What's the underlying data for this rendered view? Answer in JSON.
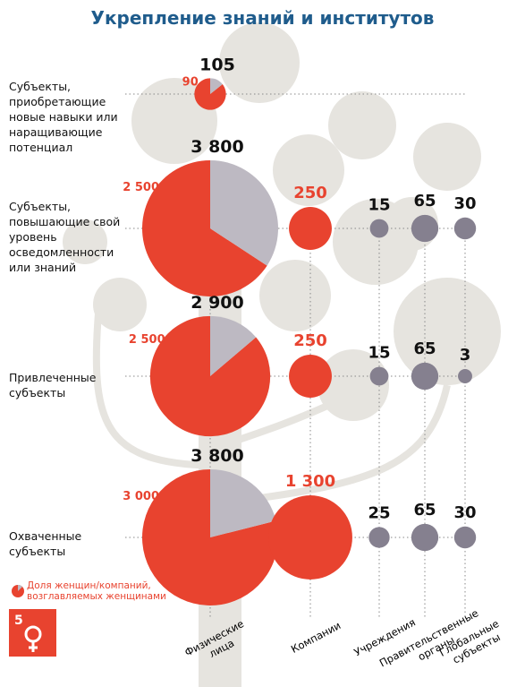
{
  "chart_data": {
    "type": "pie-matrix",
    "title": "Укрепление знаний и институтов",
    "rows": [
      "Субъекты, приобретающие новые навыки или наращивающие потенциал",
      "Субъекты, повышающие свой уровень осведомленности или знаний",
      "Привлеченные субъекты",
      "Охваченные субъекты"
    ],
    "legend": "Доля женщин/компаний, возглавляемых женщинами",
    "series": [
      {
        "name": "Физические лица",
        "color": "#e8432f",
        "total_color": "#bdb9c2",
        "values": [
          105,
          3800,
          2900,
          3800
        ],
        "value_labels": [
          "105",
          "3 800",
          "2 900",
          "3 800"
        ],
        "women": [
          90,
          2500,
          2500,
          3000
        ],
        "women_labels": [
          "90",
          "2 500",
          "2 500",
          "3 000"
        ]
      },
      {
        "name": "Компании",
        "color": "#e8432f",
        "values": [
          null,
          250,
          250,
          1300
        ],
        "value_labels": [
          null,
          "250",
          "250",
          "1 300"
        ]
      },
      {
        "name": "Учреждения",
        "color": "#85808f",
        "values": [
          null,
          15,
          15,
          25
        ]
      },
      {
        "name": "Правительственные органы",
        "color": "#85808f",
        "values": [
          null,
          65,
          65,
          65
        ]
      },
      {
        "name": "Глобальные субъекты",
        "color": "#85808f",
        "values": [
          null,
          30,
          3,
          30
        ]
      }
    ]
  }
}
